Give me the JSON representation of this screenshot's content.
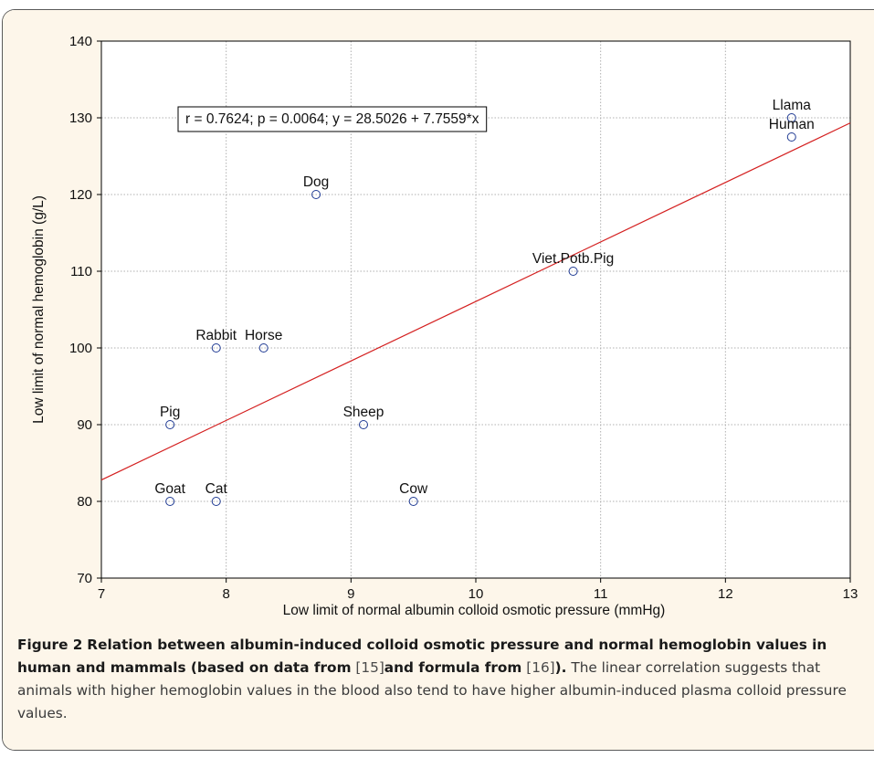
{
  "chart_data": {
    "type": "scatter",
    "xlabel": "Low limit of normal albumin colloid osmotic pressure (mmHg)",
    "ylabel": "Low limit of normal hemoglobin (g/L)",
    "xlim": [
      7,
      13
    ],
    "ylim": [
      70,
      140
    ],
    "x_ticks": [
      "7",
      "8",
      "9",
      "10",
      "11",
      "12",
      "13"
    ],
    "y_ticks": [
      "70",
      "80",
      "90",
      "100",
      "110",
      "120",
      "130",
      "140"
    ],
    "grid": true,
    "annotation": "r = 0.7624; p = 0.0064;  y = 28.5026 + 7.7559*x",
    "fit_line": {
      "intercept": 28.5026,
      "slope": 7.7559
    },
    "points": [
      {
        "label": "Llama",
        "x": 12.53,
        "y": 130
      },
      {
        "label": "Human",
        "x": 12.53,
        "y": 127.5
      },
      {
        "label": "Dog",
        "x": 8.72,
        "y": 120
      },
      {
        "label": "Viet.Potb.Pig",
        "x": 10.78,
        "y": 110
      },
      {
        "label": "Rabbit",
        "x": 7.92,
        "y": 100
      },
      {
        "label": "Horse",
        "x": 8.3,
        "y": 100
      },
      {
        "label": "Pig",
        "x": 7.55,
        "y": 90
      },
      {
        "label": "Sheep",
        "x": 9.1,
        "y": 90
      },
      {
        "label": "Goat",
        "x": 7.55,
        "y": 80
      },
      {
        "label": "Cat",
        "x": 7.92,
        "y": 80
      },
      {
        "label": "Cow",
        "x": 9.5,
        "y": 80
      }
    ],
    "colors": {
      "line": "#d42020",
      "marker": "#1f3a93",
      "grid": "#b0b0b0",
      "plot_bg": "#ffffff",
      "caption_bg": "#fdf6ea"
    }
  },
  "caption": {
    "figure_label": "Figure 2",
    "title_part1": "Relation between albumin-induced colloid osmotic pressure and normal hemoglobin values in human and mammals (based on data from",
    "ref1": "[15]",
    "title_part2": "and formula from",
    "ref2": "[16]",
    "title_end": ").",
    "body": "The linear correlation suggests that animals with higher hemoglobin values in the blood also tend to have higher albumin-induced plasma colloid pressure values."
  }
}
